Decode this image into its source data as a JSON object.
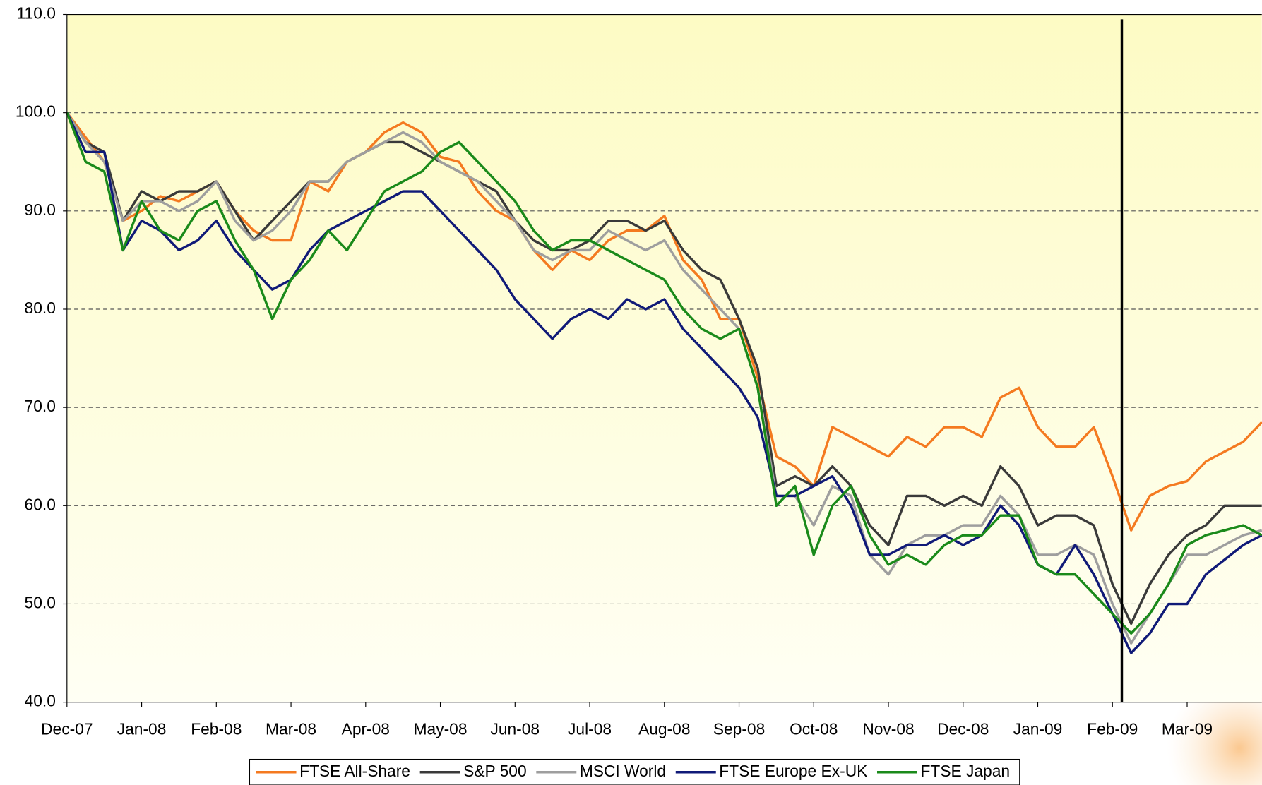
{
  "chart_data": {
    "type": "line",
    "categories": [
      "Dec-07",
      null,
      null,
      null,
      "Jan-08",
      null,
      null,
      null,
      "Feb-08",
      null,
      null,
      null,
      "Mar-08",
      null,
      null,
      null,
      "Apr-08",
      null,
      null,
      null,
      "May-08",
      null,
      null,
      null,
      "Jun-08",
      null,
      null,
      null,
      "Jul-08",
      null,
      null,
      null,
      "Aug-08",
      null,
      null,
      null,
      "Sep-08",
      null,
      null,
      null,
      "Oct-08",
      null,
      null,
      null,
      "Nov-08",
      null,
      null,
      null,
      "Dec-08",
      null,
      null,
      null,
      "Jan-09",
      null,
      null,
      null,
      "Feb-09",
      null,
      null,
      null,
      "Mar-09",
      null,
      null,
      null,
      null
    ],
    "ylim": [
      40,
      110
    ],
    "yticks": [
      {
        "value": 40,
        "label": "40.0"
      },
      {
        "value": 50,
        "label": "50.0"
      },
      {
        "value": 60,
        "label": "60.0"
      },
      {
        "value": 70,
        "label": "70.0"
      },
      {
        "value": 80,
        "label": "80.0"
      },
      {
        "value": 90,
        "label": "90.0"
      },
      {
        "value": 100,
        "label": "100.0"
      },
      {
        "value": 110,
        "label": "110.0"
      }
    ],
    "grid": true,
    "legend": "bottom",
    "series": [
      {
        "name": "FTSE All-Share",
        "color": "#f47a20",
        "values": [
          100,
          97.5,
          95,
          89,
          90,
          91.5,
          91,
          92,
          93,
          90,
          88,
          87,
          87,
          93,
          92,
          95,
          96,
          98,
          99,
          98,
          95.5,
          95,
          92,
          90,
          89,
          86,
          84,
          86,
          85,
          87,
          88,
          88,
          89.5,
          85,
          83,
          79,
          79,
          73,
          65,
          64,
          62,
          68,
          67,
          66,
          65,
          67,
          66,
          68,
          68,
          67,
          71,
          72,
          68,
          66,
          66,
          68,
          63,
          57.5,
          61,
          62,
          62.5,
          64.5,
          65.5,
          66.5,
          68.5
        ]
      },
      {
        "name": "S&P 500",
        "color": "#3a3a3a",
        "values": [
          100,
          97,
          96,
          89,
          92,
          91,
          92,
          92,
          93,
          90,
          87,
          89,
          91,
          93,
          93,
          95,
          96,
          97,
          97,
          96,
          95,
          94,
          93,
          92,
          89,
          87,
          86,
          86,
          87,
          89,
          89,
          88,
          89,
          86,
          84,
          83,
          79,
          74,
          62,
          63,
          62,
          64,
          62,
          58,
          56,
          61,
          61,
          60,
          61,
          60,
          64,
          62,
          58,
          59,
          59,
          58,
          52,
          48,
          52,
          55,
          57,
          58,
          60,
          60,
          60
        ]
      },
      {
        "name": "MSCI World",
        "color": "#9e9e9e",
        "values": [
          100,
          97,
          95,
          89,
          91,
          91,
          90,
          91,
          93,
          89,
          87,
          88,
          90,
          93,
          93,
          95,
          96,
          97,
          98,
          97,
          95,
          94,
          93,
          91,
          89,
          86,
          85,
          86,
          86,
          88,
          87,
          86,
          87,
          84,
          82,
          80,
          78,
          72,
          61,
          61,
          58,
          62,
          61,
          55,
          53,
          56,
          57,
          57,
          58,
          58,
          61,
          59,
          55,
          55,
          56,
          55,
          50,
          46,
          49,
          52,
          55,
          55,
          56,
          57,
          57.5
        ]
      },
      {
        "name": "FTSE Europe Ex-UK",
        "color": "#101a78",
        "values": [
          100,
          96,
          96,
          86,
          89,
          88,
          86,
          87,
          89,
          86,
          84,
          82,
          83,
          86,
          88,
          89,
          90,
          91,
          92,
          92,
          90,
          88,
          86,
          84,
          81,
          79,
          77,
          79,
          80,
          79,
          81,
          80,
          81,
          78,
          76,
          74,
          72,
          69,
          61,
          61,
          62,
          63,
          60,
          55,
          55,
          56,
          56,
          57,
          56,
          57,
          60,
          58,
          54,
          53,
          56,
          53,
          49,
          45,
          47,
          50,
          50,
          53,
          54.5,
          56,
          57
        ]
      },
      {
        "name": "FTSE Japan",
        "color": "#1a8a1a",
        "values": [
          100,
          95,
          94,
          86,
          91,
          88,
          87,
          90,
          91,
          87,
          84,
          79,
          83,
          85,
          88,
          86,
          89,
          92,
          93,
          94,
          96,
          97,
          95,
          93,
          91,
          88,
          86,
          87,
          87,
          86,
          85,
          84,
          83,
          80,
          78,
          77,
          78,
          72,
          60,
          62,
          55,
          60,
          62,
          57,
          54,
          55,
          54,
          56,
          57,
          57,
          59,
          59,
          54,
          53,
          53,
          51,
          49,
          47,
          49,
          52,
          56,
          57,
          57.5,
          58,
          57
        ]
      }
    ]
  }
}
